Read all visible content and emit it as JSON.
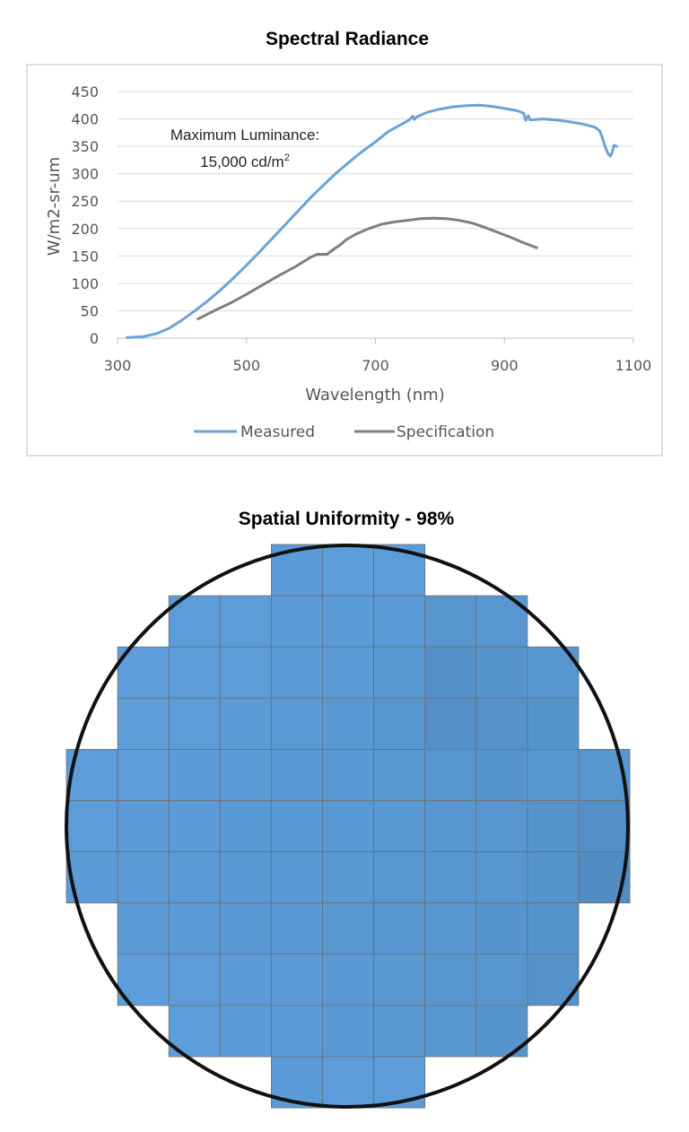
{
  "chart_data": [
    {
      "type": "line",
      "title": "Spectral Radiance",
      "xlabel": "Wavelength (nm)",
      "ylabel": "W/m2-sr-um",
      "xlim": [
        300,
        1100
      ],
      "ylim": [
        0,
        450
      ],
      "x_ticks": [
        "300",
        "500",
        "700",
        "900",
        "1100"
      ],
      "y_ticks": [
        "0",
        "50",
        "100",
        "150",
        "200",
        "250",
        "300",
        "350",
        "400",
        "450"
      ],
      "grid": "horizontal",
      "legend_position": "bottom",
      "annotation": {
        "line1": "Maximum Luminance:",
        "line2_value": "15,000 cd/m",
        "line2_superscript": "2"
      },
      "series": [
        {
          "name": "Measured",
          "color": "#6ca2d8",
          "points": [
            [
              315,
              1
            ],
            [
              340,
              3
            ],
            [
              360,
              8
            ],
            [
              380,
              18
            ],
            [
              400,
              33
            ],
            [
              420,
              50
            ],
            [
              440,
              68
            ],
            [
              460,
              88
            ],
            [
              480,
              110
            ],
            [
              500,
              133
            ],
            [
              520,
              157
            ],
            [
              540,
              182
            ],
            [
              560,
              207
            ],
            [
              580,
              232
            ],
            [
              600,
              257
            ],
            [
              620,
              280
            ],
            [
              640,
              302
            ],
            [
              660,
              322
            ],
            [
              680,
              341
            ],
            [
              700,
              358
            ],
            [
              720,
              377
            ],
            [
              740,
              390
            ],
            [
              752,
              398
            ],
            [
              758,
              405
            ],
            [
              760,
              399
            ],
            [
              763,
              403
            ],
            [
              780,
              412
            ],
            [
              800,
              418
            ],
            [
              820,
              422
            ],
            [
              840,
              424
            ],
            [
              860,
              425
            ],
            [
              880,
              423
            ],
            [
              900,
              419
            ],
            [
              920,
              415
            ],
            [
              930,
              410
            ],
            [
              933,
              397
            ],
            [
              937,
              406
            ],
            [
              940,
              398
            ],
            [
              960,
              400
            ],
            [
              980,
              398
            ],
            [
              1000,
              395
            ],
            [
              1020,
              391
            ],
            [
              1040,
              385
            ],
            [
              1048,
              378
            ],
            [
              1052,
              365
            ],
            [
              1056,
              350
            ],
            [
              1060,
              338
            ],
            [
              1064,
              332
            ],
            [
              1067,
              338
            ],
            [
              1070,
              352
            ],
            [
              1074,
              350
            ]
          ]
        },
        {
          "name": "Specification",
          "color": "#7f7f7f",
          "points": [
            [
              425,
              35
            ],
            [
              450,
              50
            ],
            [
              475,
              64
            ],
            [
              500,
              80
            ],
            [
              525,
              97
            ],
            [
              550,
              114
            ],
            [
              575,
              130
            ],
            [
              600,
              148
            ],
            [
              610,
              153
            ],
            [
              625,
              153
            ],
            [
              635,
              162
            ],
            [
              645,
              170
            ],
            [
              655,
              180
            ],
            [
              670,
              190
            ],
            [
              690,
              200
            ],
            [
              710,
              208
            ],
            [
              730,
              212
            ],
            [
              750,
              215
            ],
            [
              770,
              218
            ],
            [
              790,
              219
            ],
            [
              810,
              218
            ],
            [
              830,
              215
            ],
            [
              850,
              210
            ],
            [
              870,
              202
            ],
            [
              890,
              193
            ],
            [
              910,
              184
            ],
            [
              930,
              174
            ],
            [
              950,
              165
            ]
          ]
        }
      ]
    },
    {
      "type": "heatmap",
      "title": "Spatial Uniformity - 98%",
      "rows": 11,
      "cols": 11,
      "row_spans": [
        [
          4,
          6
        ],
        [
          2,
          8
        ],
        [
          1,
          9
        ],
        [
          1,
          9
        ],
        [
          0,
          10
        ],
        [
          0,
          10
        ],
        [
          0,
          10
        ],
        [
          1,
          9
        ],
        [
          1,
          9
        ],
        [
          2,
          8
        ],
        [
          4,
          6
        ]
      ],
      "cell_colors": [
        [
          "",
          "",
          "",
          "",
          "#5a9bd8",
          "#5c9ddb",
          "#5b9cd9",
          "",
          "",
          "",
          ""
        ],
        [
          "",
          "",
          "#5b9cd9",
          "#5b9cd9",
          "#5a9bd8",
          "#5a9bd8",
          "#5a9bd7",
          "#5795cd",
          "#5897d1",
          "",
          ""
        ],
        [
          "",
          "#5d9ddb",
          "#5c9dda",
          "#5b9cd9",
          "#5a9bd8",
          "#5a9ad7",
          "#5899d4",
          "#5491c8",
          "#5694cc",
          "#5796cf",
          ""
        ],
        [
          "",
          "#5c9dda",
          "#5b9cd9",
          "#5a9bd8",
          "#5a9ad7",
          "#5999d5",
          "#5796d0",
          "#5490c7",
          "#5592c9",
          "#5694cc",
          ""
        ],
        [
          "#5b9cd9",
          "#5b9cd9",
          "#5a9bd8",
          "#5a9ad7",
          "#5999d6",
          "#5999d5",
          "#5898d3",
          "#5795cf",
          "#5694cd",
          "#5796cf",
          "#5796cf"
        ],
        [
          "#5b9cd9",
          "#5a9bd8",
          "#5a9bd8",
          "#5999d6",
          "#5999d5",
          "#5898d4",
          "#5898d3",
          "#5796d0",
          "#5695ce",
          "#5694cc",
          "#5490c7"
        ],
        [
          "#5b9bd8",
          "#5a9bd8",
          "#5a9ad7",
          "#5999d6",
          "#5999d5",
          "#5898d3",
          "#5797d2",
          "#5796d0",
          "#5695ce",
          "#5593cb",
          "#518cc2"
        ],
        [
          "",
          "#5a9bd8",
          "#5a9ad7",
          "#5999d6",
          "#5898d4",
          "#5898d3",
          "#5796d1",
          "#5796d0",
          "#5694cd",
          "#5593cb",
          ""
        ],
        [
          "",
          "#5d9ddb",
          "#5c9cda",
          "#5b9bd9",
          "#5a9ad7",
          "#5999d5",
          "#5898d3",
          "#5796d1",
          "#5695ce",
          "#5592c9",
          ""
        ],
        [
          "",
          "",
          "#5c9dda",
          "#5b9bd9",
          "#5a9ad7",
          "#5999d5",
          "#5898d3",
          "#5796d1",
          "#5694cd",
          "",
          ""
        ],
        [
          "",
          "",
          "",
          "",
          "#5a9bd8",
          "#5c9cda",
          "#5b9cd9",
          "",
          "",
          "",
          ""
        ]
      ],
      "outline": "circle"
    }
  ]
}
